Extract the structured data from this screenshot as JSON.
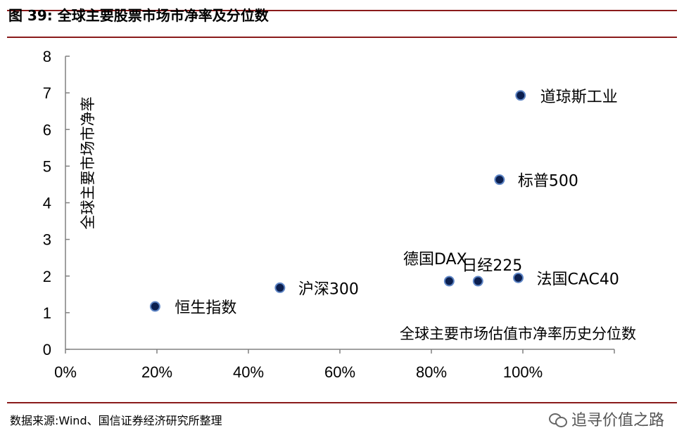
{
  "figure": {
    "title": "图 39: 全球主要股票市场市净率及分位数",
    "source": "数据来源:Wind、国信证券经济研究所整理",
    "watermark": "追寻价值之路",
    "watermark_icon": "wechat-icon"
  },
  "chart_data": {
    "type": "scatter",
    "xlabel": "全球主要市场估值市净率历史分位数",
    "ylabel": "全球主要市场市净率",
    "xlim": [
      0,
      1.2
    ],
    "ylim": [
      0,
      8
    ],
    "x_ticks": [
      0,
      0.2,
      0.4,
      0.6,
      0.8,
      1.0
    ],
    "x_tick_labels": [
      "0%",
      "20%",
      "40%",
      "60%",
      "80%",
      "100%"
    ],
    "y_ticks": [
      0,
      1,
      2,
      3,
      4,
      5,
      6,
      7,
      8
    ],
    "y_tick_labels": [
      "0",
      "1",
      "2",
      "3",
      "4",
      "5",
      "6",
      "7",
      "8"
    ],
    "grid": false,
    "marker_color": "#0b1f4f",
    "points": [
      {
        "label": "恒生指数",
        "x": 0.196,
        "y": 1.17
      },
      {
        "label": "沪深300",
        "x": 0.469,
        "y": 1.68
      },
      {
        "label": "德国DAX",
        "x": 0.839,
        "y": 1.86
      },
      {
        "label": "日经225",
        "x": 0.902,
        "y": 1.86
      },
      {
        "label": "法国CAC40",
        "x": 0.99,
        "y": 1.95
      },
      {
        "label": "标普500",
        "x": 0.949,
        "y": 4.63
      },
      {
        "label": "道琼斯工业",
        "x": 0.995,
        "y": 6.93
      }
    ]
  }
}
